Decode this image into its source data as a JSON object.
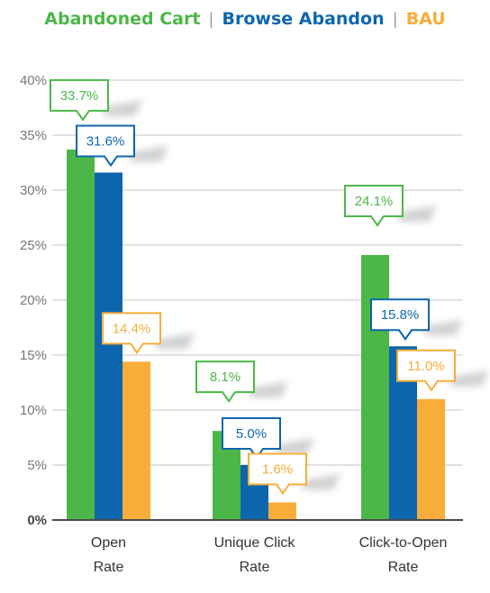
{
  "chart_data": {
    "type": "bar",
    "categories": [
      [
        "Open",
        "Rate"
      ],
      [
        "Unique Click",
        "Rate"
      ],
      [
        "Click-to-Open",
        "Rate"
      ]
    ],
    "series": [
      {
        "name": "Abandoned Cart",
        "color": "#4cb748",
        "values": [
          33.7,
          8.1,
          24.1
        ],
        "labels": [
          "33.7%",
          "8.1%",
          "24.1%"
        ]
      },
      {
        "name": "Browse Abandon",
        "color": "#0d66ad",
        "values": [
          31.6,
          5.0,
          15.8
        ],
        "labels": [
          "31.6%",
          "5.0%",
          "15.8%"
        ]
      },
      {
        "name": "BAU",
        "color": "#f8ad3b",
        "values": [
          14.4,
          1.6,
          11.0
        ],
        "labels": [
          "14.4%",
          "1.6%",
          "11.0%"
        ]
      }
    ],
    "yticks": [
      "0%",
      "5%",
      "10%",
      "15%",
      "20%",
      "25%",
      "30%",
      "35%",
      "40%"
    ],
    "ylim": [
      0,
      40
    ],
    "grid": true,
    "legend_position": "top-center"
  }
}
